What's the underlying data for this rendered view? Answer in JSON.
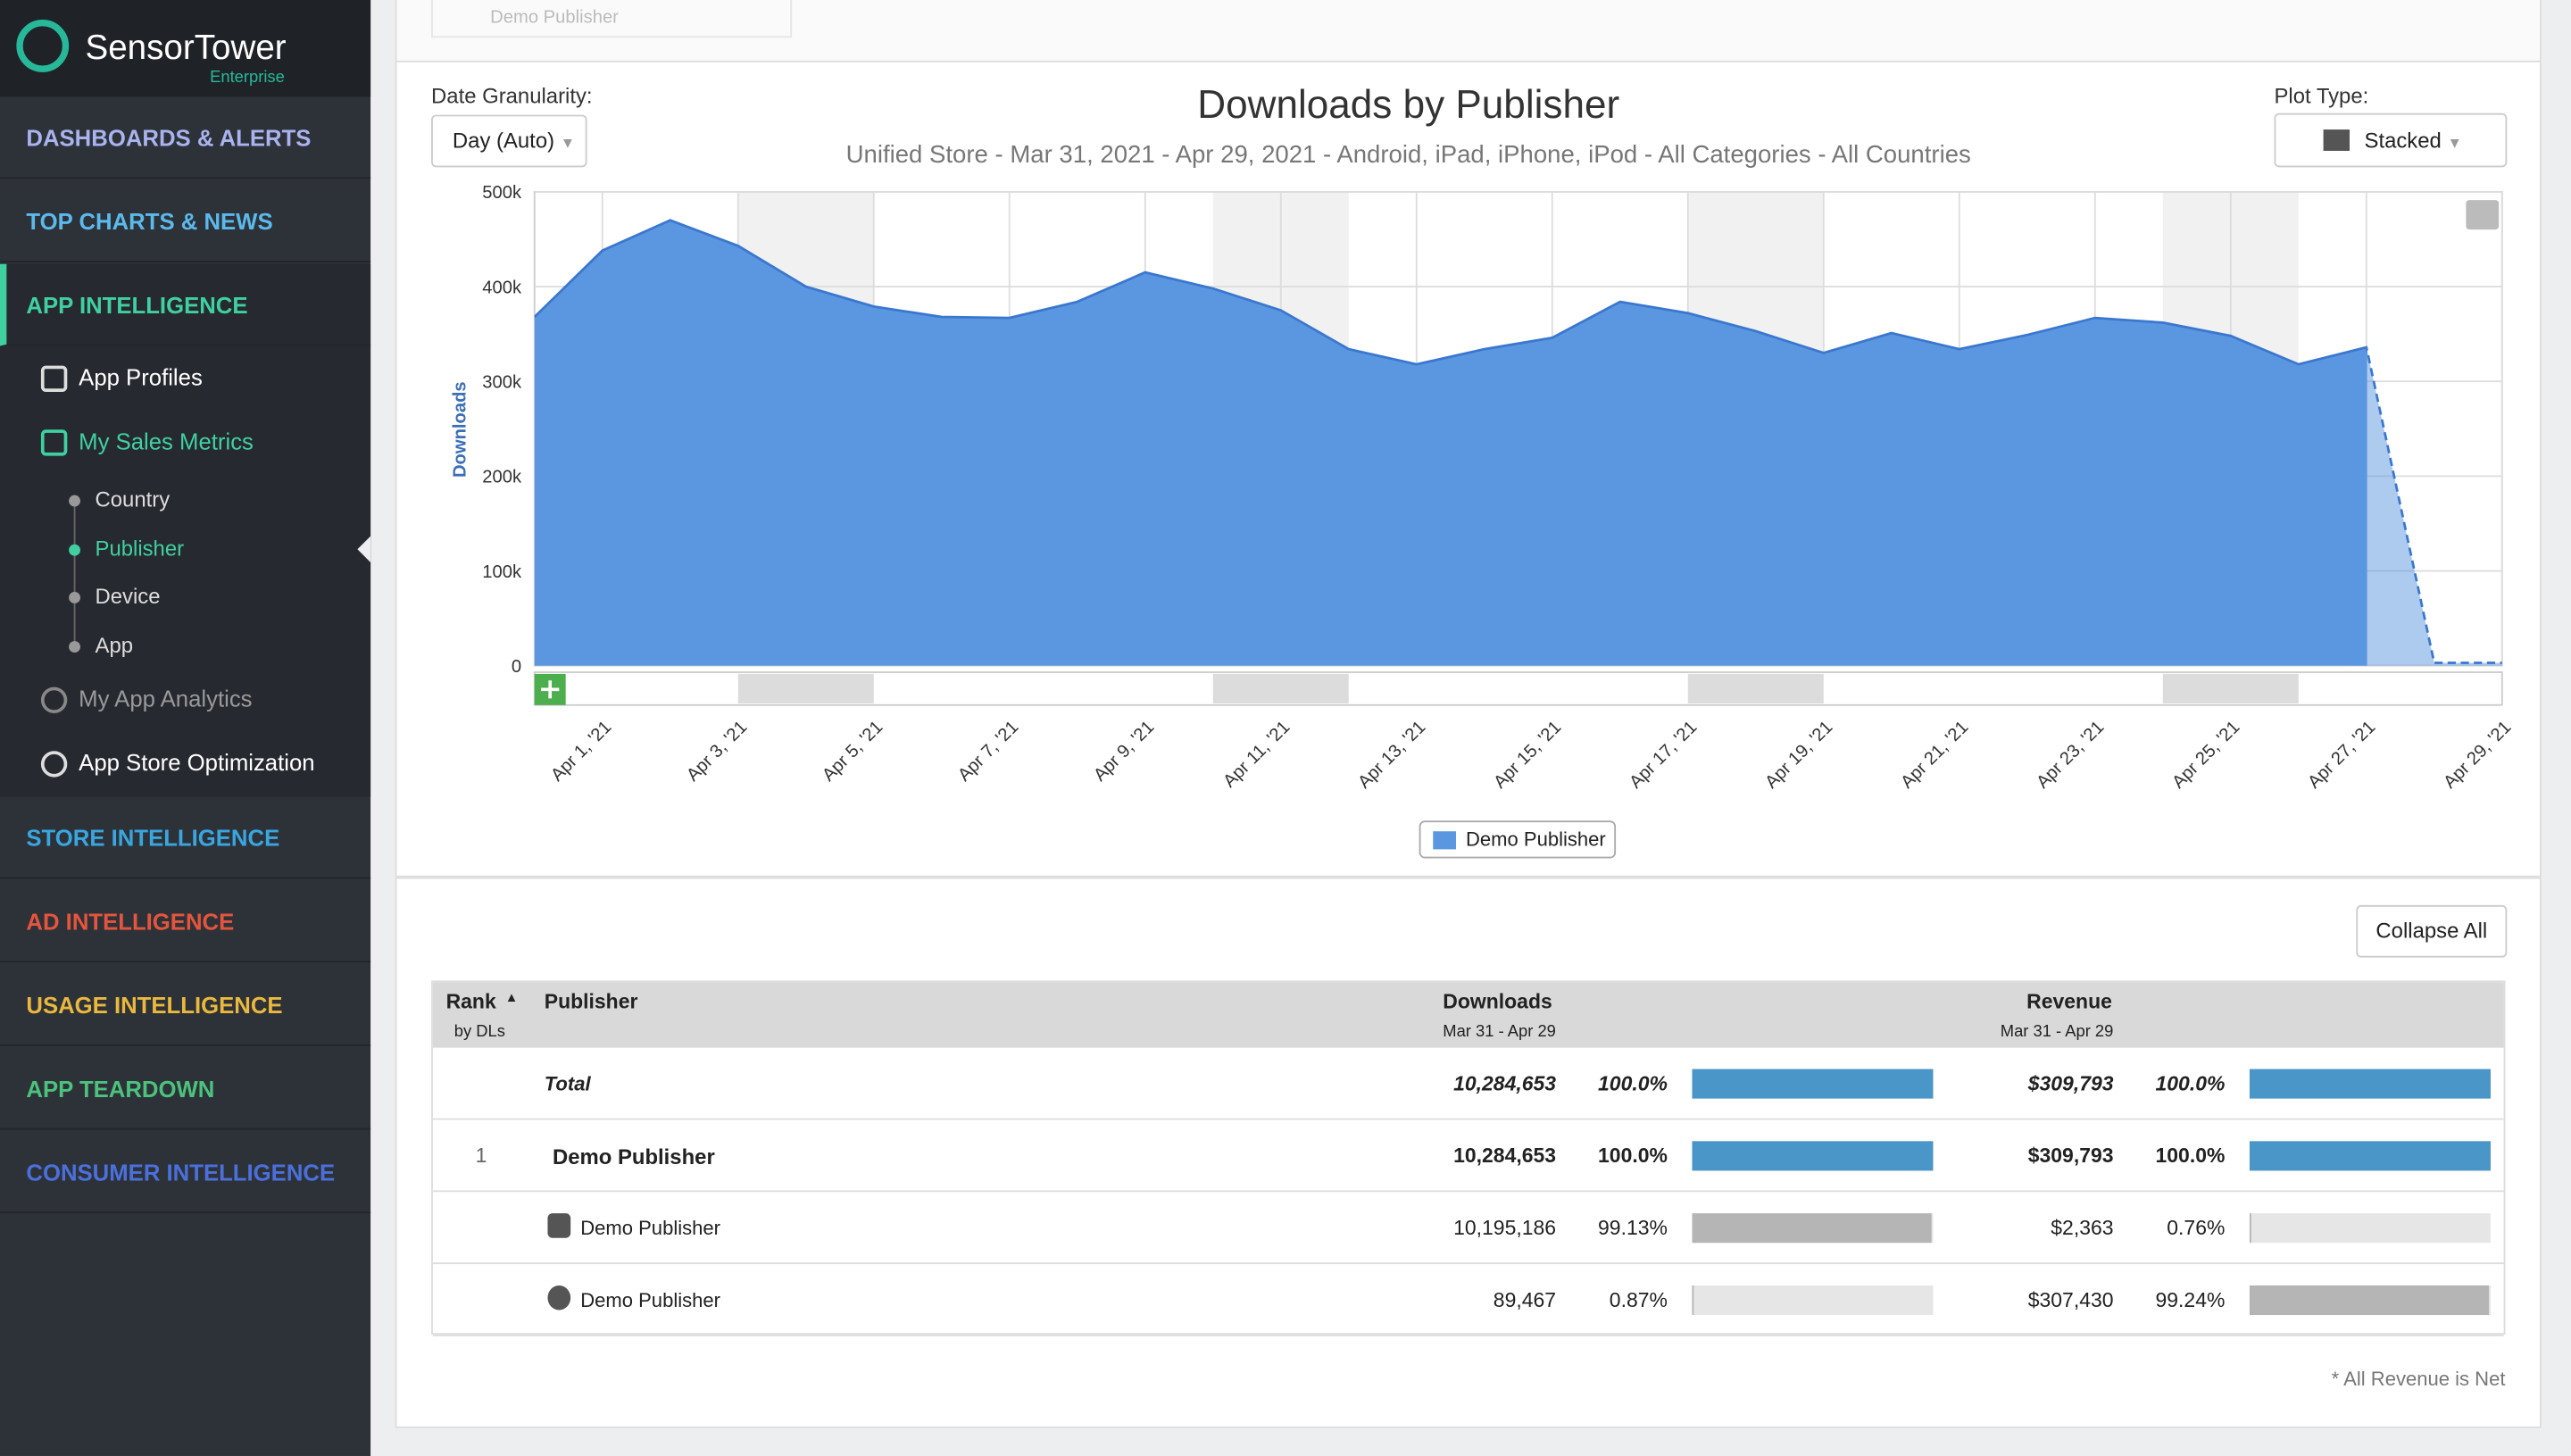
{
  "sidebar": {
    "logo_a": "Sensor",
    "logo_b": "Tower",
    "logo_sub": "Enterprise",
    "sections_top": [
      "DASHBOARDS & ALERTS",
      "TOP CHARTS & NEWS",
      "APP INTELLIGENCE"
    ],
    "sub_items": [
      "App Profiles",
      "My Sales Metrics"
    ],
    "sub_sub_items": [
      "Country",
      "Publisher",
      "Device",
      "App"
    ],
    "sub_items_2": [
      "My App Analytics",
      "App Store Optimization"
    ],
    "sections_bottom": [
      "STORE INTELLIGENCE",
      "AD INTELLIGENCE",
      "USAGE INTELLIGENCE",
      "APP TEARDOWN",
      "CONSUMER INTELLIGENCE"
    ]
  },
  "top_card": "Demo Publisher",
  "controls": {
    "granularity_label": "Date Granularity:",
    "granularity": "Day (Auto)",
    "plot_type_label": "Plot Type:",
    "plot_type": "Stacked",
    "collapse": "Collapse All"
  },
  "chart_data": {
    "type": "area",
    "title": "Downloads by Publisher",
    "subtitle": "Unified Store - Mar 31, 2021 - Apr 29, 2021 - Android, iPad, iPhone, iPod - All Categories - All Countries",
    "y_label": "Downloads",
    "categories": [
      null,
      "Apr 1, '21",
      null,
      "Apr 3, '21",
      null,
      "Apr 5, '21",
      null,
      "Apr 7, '21",
      null,
      "Apr 9, '21",
      null,
      "Apr 11, '21",
      null,
      "Apr 13, '21",
      null,
      "Apr 15, '21",
      null,
      "Apr 17, '21",
      null,
      "Apr 19, '21",
      null,
      "Apr 21, '21",
      null,
      "Apr 23, '21",
      null,
      "Apr 25, '21",
      null,
      "Apr 27, '21",
      null,
      "Apr 29, '21"
    ],
    "series": [
      {
        "name": "Demo Publisher",
        "color": "#5b97e0",
        "values": [
          368000,
          438000,
          470000,
          443000,
          400000,
          379000,
          368000,
          367000,
          384000,
          415000,
          398000,
          375000,
          334000,
          318000,
          334000,
          346000,
          384000,
          372000,
          353000,
          330000,
          351000,
          334000,
          349000,
          367000,
          362000,
          348000,
          318000,
          336000,
          3000,
          3000
        ]
      }
    ],
    "ylim": [
      0,
      500000
    ],
    "yticks": [
      0,
      {
        "value": 100000,
        "label": "100k"
      },
      {
        "value": 200000,
        "label": "200k"
      },
      {
        "value": 300000,
        "label": "300k"
      },
      {
        "value": 400000,
        "label": "400k"
      },
      {
        "value": 500000,
        "label": "500k"
      }
    ],
    "grid": true,
    "legend": "bottom"
  },
  "table": {
    "headers": {
      "rank": "Rank",
      "rank_sub": "by DLs",
      "publisher": "Publisher",
      "downloads": "Downloads",
      "downloads_sub": "Mar 31 - Apr 29",
      "revenue": "Revenue",
      "revenue_sub": "Mar 31 - Apr 29"
    },
    "rows": [
      {
        "rank": "",
        "publisher": "Total",
        "downloads": "10,284,653",
        "downloads_pct": {
          "value": 100,
          "label": "100.0%"
        },
        "revenue": "$309,793",
        "revenue_pct": {
          "value": 100,
          "label": "100.0%"
        }
      },
      {
        "rank": "1",
        "publisher": "Demo Publisher",
        "downloads": "10,284,653",
        "downloads_pct": {
          "value": 100,
          "label": "100.0%"
        },
        "revenue": "$309,793",
        "revenue_pct": {
          "value": 100,
          "label": "100.0%"
        }
      },
      {
        "rank": "",
        "publisher": "Demo Publisher",
        "downloads": "10,195,186",
        "downloads_pct": {
          "value": 99.13,
          "label": "99.13%"
        },
        "revenue": "$2,363",
        "revenue_pct": {
          "value": 0.76,
          "label": "0.76%"
        }
      },
      {
        "rank": "",
        "publisher": "Demo Publisher",
        "downloads": "89,467",
        "downloads_pct": {
          "value": 0.87,
          "label": "0.87%"
        },
        "revenue": "$307,430",
        "revenue_pct": {
          "value": 99.24,
          "label": "99.24%"
        }
      }
    ],
    "footnote": "* All Revenue is Net"
  }
}
